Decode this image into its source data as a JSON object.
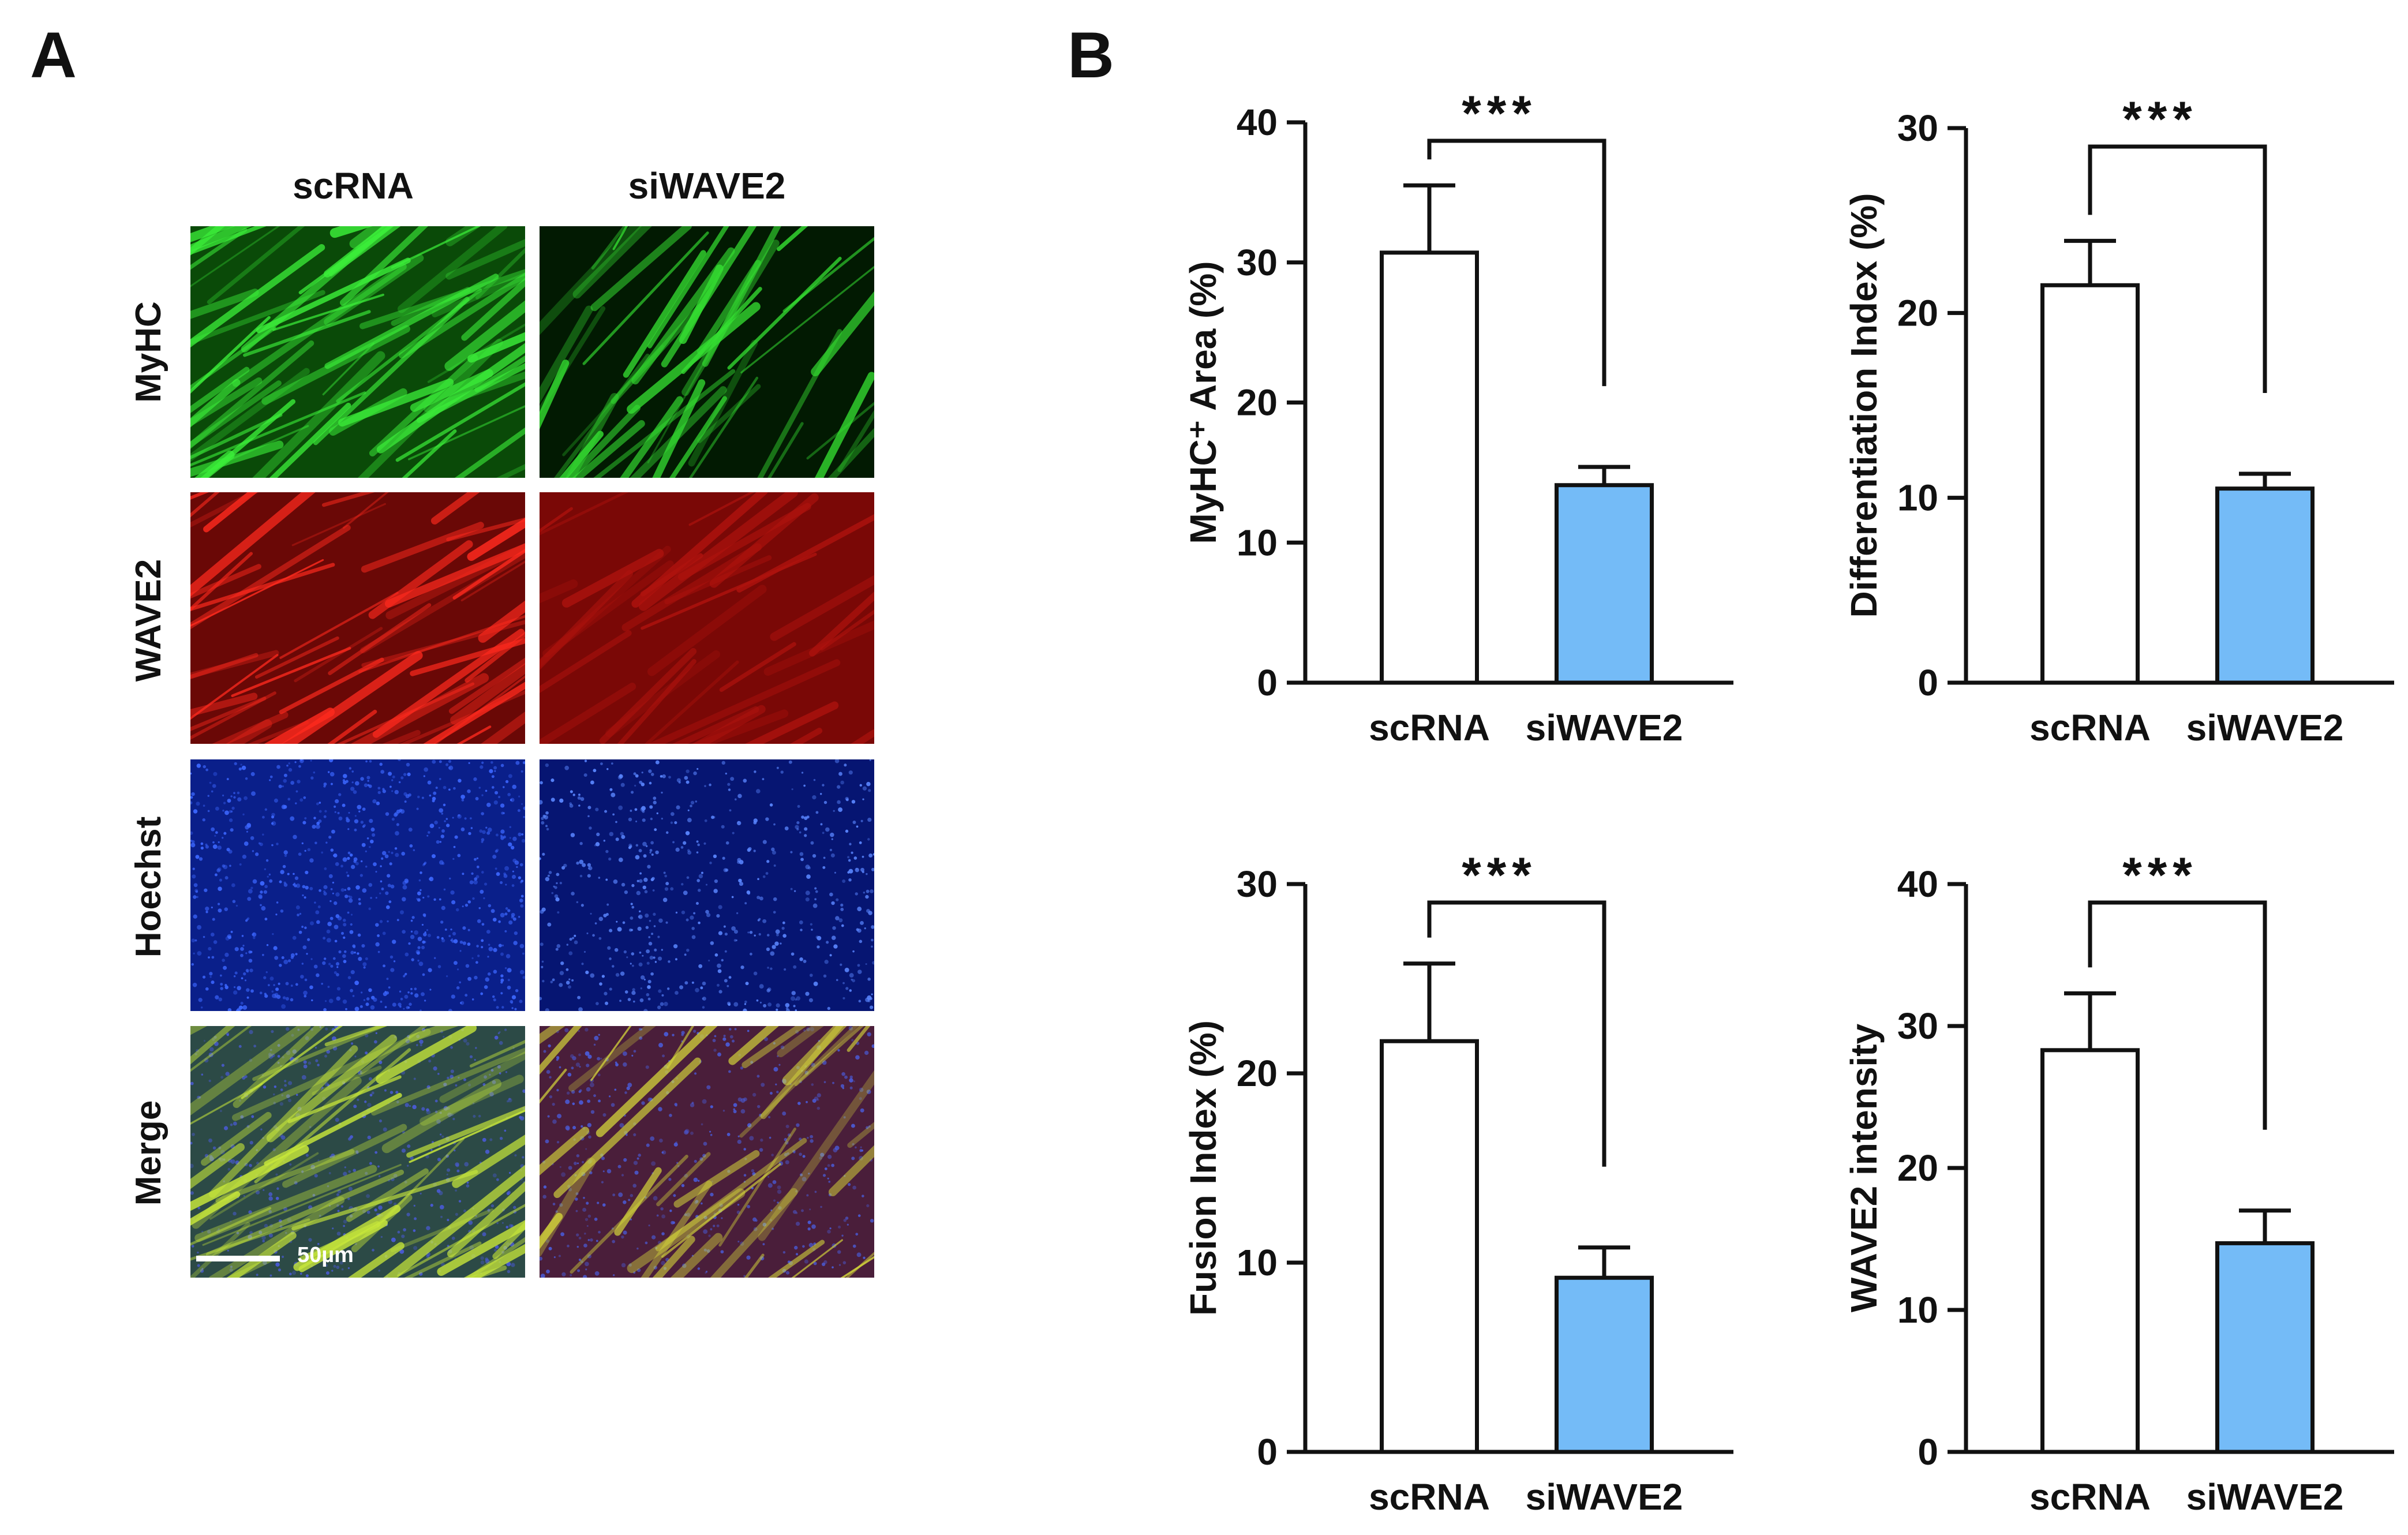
{
  "panel_a": {
    "letter": "A",
    "columns": [
      "scRNA",
      "siWAVE2"
    ],
    "rows": [
      "MyHC",
      "WAVE2",
      "Hoechst",
      "Merge"
    ],
    "scale_bar_label": "50µm",
    "channel_colors": {
      "MyHC": "#22c41e",
      "WAVE2": "#d51a14",
      "Hoechst": "#1e3fd0"
    }
  },
  "panel_b": {
    "letter": "B"
  },
  "chart_data": [
    {
      "type": "bar",
      "categories": [
        "scRNA",
        "siWAVE2"
      ],
      "values": [
        30.7,
        14.1
      ],
      "errors": [
        4.8,
        1.3
      ],
      "ylabel": "MyHC⁺ Area (%)",
      "ylim": [
        0,
        40
      ],
      "yticks": [
        0,
        10,
        20,
        30,
        40
      ],
      "significance": "***",
      "bar_colors": [
        "#ffffff",
        "#74bbf7"
      ]
    },
    {
      "type": "bar",
      "categories": [
        "scRNA",
        "siWAVE2"
      ],
      "values": [
        21.5,
        10.5
      ],
      "errors": [
        2.4,
        0.8
      ],
      "ylabel": "Differentiation Index (%)",
      "ylim": [
        0,
        30
      ],
      "yticks": [
        0,
        10,
        20,
        30
      ],
      "significance": "***",
      "bar_colors": [
        "#ffffff",
        "#74bbf7"
      ]
    },
    {
      "type": "bar",
      "categories": [
        "scRNA",
        "siWAVE2"
      ],
      "values": [
        21.7,
        9.2
      ],
      "errors": [
        4.1,
        1.6
      ],
      "ylabel": "Fusion Index (%)",
      "ylim": [
        0,
        30
      ],
      "yticks": [
        0,
        10,
        20,
        30
      ],
      "significance": "***",
      "bar_colors": [
        "#ffffff",
        "#74bbf7"
      ]
    },
    {
      "type": "bar",
      "categories": [
        "scRNA",
        "siWAVE2"
      ],
      "values": [
        28.3,
        14.7
      ],
      "errors": [
        4.0,
        2.3
      ],
      "ylabel": "WAVE2 intensity",
      "ylim": [
        0,
        40
      ],
      "yticks": [
        0,
        10,
        20,
        30,
        40
      ],
      "significance": "***",
      "bar_colors": [
        "#ffffff",
        "#74bbf7"
      ]
    }
  ]
}
